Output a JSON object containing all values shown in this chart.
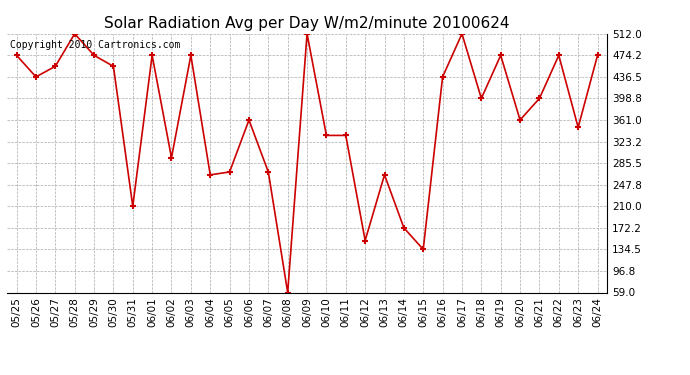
{
  "title": "Solar Radiation Avg per Day W/m2/minute 20100624",
  "copyright_text": "Copyright 2010 Cartronics.com",
  "dates": [
    "05/25",
    "05/26",
    "05/27",
    "05/28",
    "05/29",
    "05/30",
    "05/31",
    "06/01",
    "06/02",
    "06/03",
    "06/04",
    "06/05",
    "06/06",
    "06/07",
    "06/08",
    "06/09",
    "06/10",
    "06/11",
    "06/12",
    "06/13",
    "06/14",
    "06/15",
    "06/16",
    "06/17",
    "06/18",
    "06/19",
    "06/20",
    "06/21",
    "06/22",
    "06/23",
    "06/24"
  ],
  "values": [
    474.2,
    436.5,
    455.0,
    512.0,
    474.2,
    455.0,
    210.0,
    474.2,
    295.0,
    474.2,
    265.0,
    270.0,
    361.0,
    270.0,
    59.0,
    512.0,
    334.0,
    334.0,
    150.0,
    265.0,
    172.2,
    134.5,
    436.5,
    512.0,
    398.8,
    474.2,
    361.0,
    398.8,
    474.2,
    348.0,
    474.2
  ],
  "y_ticks": [
    59.0,
    96.8,
    134.5,
    172.2,
    210.0,
    247.8,
    285.5,
    323.2,
    361.0,
    398.8,
    436.5,
    474.2,
    512.0
  ],
  "ymin": 59.0,
  "ymax": 512.0,
  "line_color": "#cc0000",
  "marker_color": "#cc0000",
  "bg_color": "#ffffff",
  "grid_color": "#aaaaaa",
  "title_fontsize": 11,
  "copyright_fontsize": 7,
  "tick_fontsize": 7.5
}
